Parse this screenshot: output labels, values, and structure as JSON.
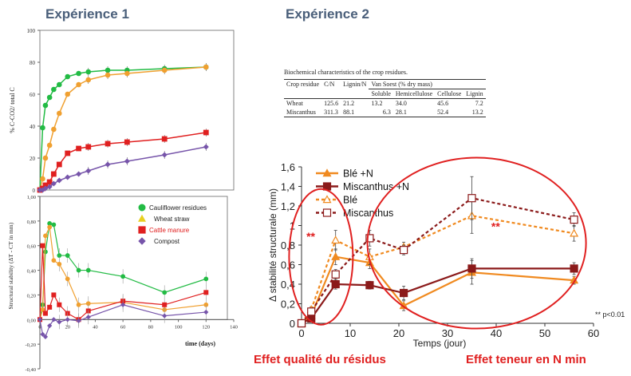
{
  "headings": {
    "exp1": "Expérience 1",
    "exp2": "Expérience 2"
  },
  "footer": {
    "left": "Effet qualité du résidus",
    "right": "Effet teneur en N min"
  },
  "table": {
    "caption": "Biochemical characteristics of the crop residues.",
    "headers": [
      "Crop residue",
      "C/N",
      "Lignin/N",
      "Van Soest (% dry mass)"
    ],
    "subheaders": [
      "Soluble",
      "Hemicellulose",
      "Cellulose",
      "Lignin"
    ],
    "rows": [
      [
        "Wheat",
        "125.6",
        "21.2",
        "13.2",
        "34.0",
        "45.6",
        "7.2"
      ],
      [
        "Miscanthus",
        "311.3",
        "88.1",
        "6.3",
        "28.1",
        "52.4",
        "13.2"
      ]
    ]
  },
  "chart_data": [
    {
      "type": "line",
      "title": "",
      "ylabel": "% C-CO2/ total C",
      "xlabel": "",
      "xlim": [
        0,
        140
      ],
      "ylim": [
        0,
        100
      ],
      "yticks": [
        0,
        20,
        40,
        60,
        80,
        100
      ],
      "series": [
        {
          "name": "Cauliflower residues",
          "color": "#22bb44",
          "marker": "circle",
          "x": [
            0,
            2,
            4,
            7,
            10,
            14,
            20,
            28,
            35,
            49,
            63,
            90,
            120
          ],
          "y": [
            0,
            39,
            53,
            58,
            63,
            66,
            71,
            73,
            74,
            75,
            75,
            76,
            77
          ]
        },
        {
          "name": "Wheat straw",
          "color": "#f0a030",
          "marker": "circle",
          "x": [
            0,
            2,
            4,
            7,
            10,
            14,
            20,
            28,
            35,
            49,
            63,
            90,
            120
          ],
          "y": [
            0,
            7,
            20,
            28,
            38,
            48,
            60,
            66,
            69,
            72,
            73,
            75,
            77
          ]
        },
        {
          "name": "Cattle manure",
          "color": "#e02020",
          "marker": "square",
          "x": [
            0,
            2,
            4,
            7,
            10,
            14,
            20,
            28,
            35,
            49,
            63,
            90,
            120
          ],
          "y": [
            0,
            1,
            3,
            5,
            10,
            16,
            23,
            26,
            27,
            29,
            30,
            32,
            36
          ]
        },
        {
          "name": "Compost",
          "color": "#7755aa",
          "marker": "diamond",
          "x": [
            0,
            2,
            4,
            7,
            10,
            14,
            20,
            28,
            35,
            49,
            63,
            90,
            120
          ],
          "y": [
            0,
            0,
            1,
            2,
            4,
            6,
            8,
            10,
            12,
            16,
            18,
            22,
            27
          ]
        }
      ]
    },
    {
      "type": "line",
      "title": "",
      "ylabel": "Structural stability (ΔT - CT in mm)",
      "xlabel": "time (days)",
      "xlim": [
        0,
        140
      ],
      "ylim": [
        -0.4,
        1.0
      ],
      "xticks": [
        0,
        20,
        40,
        60,
        80,
        100,
        120,
        140
      ],
      "yticks": [
        -0.4,
        -0.2,
        0,
        0.2,
        0.4,
        0.6,
        0.8,
        1.0
      ],
      "legend": {
        "position": "top-right"
      },
      "series": [
        {
          "name": "Cauliflower residues",
          "color": "#22bb44",
          "marker": "circle",
          "x": [
            0,
            2,
            4,
            7,
            10,
            14,
            20,
            28,
            35,
            60,
            90,
            120
          ],
          "y": [
            0,
            0.12,
            0.55,
            0.78,
            0.77,
            0.52,
            0.52,
            0.4,
            0.4,
            0.35,
            0.22,
            0.33
          ]
        },
        {
          "name": "Wheat straw",
          "color": "#f0a030",
          "marker": "circle",
          "x": [
            0,
            2,
            4,
            7,
            10,
            14,
            20,
            28,
            35,
            60,
            90,
            120
          ],
          "y": [
            0,
            0.08,
            0.68,
            0.75,
            0.48,
            0.45,
            0.33,
            0.12,
            0.13,
            0.14,
            0.08,
            0.12
          ]
        },
        {
          "name": "Cattle manure",
          "color": "#e02020",
          "marker": "square",
          "x": [
            0,
            2,
            4,
            7,
            10,
            14,
            20,
            28,
            35,
            60,
            90,
            120
          ],
          "y": [
            0,
            0.6,
            0.05,
            0.1,
            0.2,
            0.12,
            0.05,
            0.0,
            0.07,
            0.15,
            0.12,
            0.22
          ]
        },
        {
          "name": "Compost",
          "color": "#7755aa",
          "marker": "diamond",
          "x": [
            0,
            2,
            4,
            7,
            10,
            14,
            20,
            28,
            35,
            60,
            90,
            120
          ],
          "y": [
            0,
            -0.12,
            -0.14,
            -0.05,
            0.0,
            -0.02,
            0.0,
            -0.01,
            0.02,
            0.12,
            0.03,
            0.06
          ]
        }
      ]
    },
    {
      "type": "line",
      "title": "",
      "ylabel": "Δ stabilité structurale (mm)",
      "xlabel": "Temps (jour)",
      "xlim": [
        0,
        60
      ],
      "ylim": [
        0,
        1.6
      ],
      "xticks": [
        0,
        10,
        20,
        30,
        40,
        50,
        60
      ],
      "yticks": [
        0,
        0.2,
        0.4,
        0.6,
        0.8,
        1,
        1.2,
        1.4,
        1.6
      ],
      "annotations": [
        "**",
        "**",
        "** p<0.01"
      ],
      "series": [
        {
          "name": "Blé +N",
          "color": "#f08a20",
          "marker": "triangle",
          "filled": true,
          "dash": false,
          "x": [
            0,
            2,
            7,
            14,
            21,
            35,
            56
          ],
          "y": [
            0,
            0.08,
            0.68,
            0.62,
            0.18,
            0.52,
            0.44
          ],
          "err": [
            0.02,
            0.03,
            0.08,
            0.06,
            0.05,
            0.12,
            0.04
          ]
        },
        {
          "name": "Miscanthus +N",
          "color": "#8b1a1a",
          "marker": "square",
          "filled": true,
          "dash": false,
          "x": [
            0,
            2,
            7,
            14,
            21,
            35,
            56
          ],
          "y": [
            0,
            0.05,
            0.4,
            0.39,
            0.31,
            0.56,
            0.56
          ],
          "err": [
            0.02,
            0.03,
            0.05,
            0.04,
            0.07,
            0.1,
            0.06
          ]
        },
        {
          "name": "Blé",
          "color": "#f08a20",
          "marker": "triangle",
          "filled": false,
          "dash": true,
          "x": [
            0,
            2,
            7,
            14,
            21,
            35,
            56
          ],
          "y": [
            0,
            0.14,
            0.85,
            0.68,
            0.78,
            1.1,
            0.92
          ],
          "err": [
            0.02,
            0.03,
            0.1,
            0.08,
            0.05,
            0.18,
            0.08
          ]
        },
        {
          "name": "Miscanthus",
          "color": "#8b1a1a",
          "marker": "square",
          "filled": false,
          "dash": true,
          "x": [
            0,
            2,
            7,
            14,
            21,
            35,
            56
          ],
          "y": [
            0,
            0.12,
            0.5,
            0.87,
            0.75,
            1.28,
            1.06
          ],
          "err": [
            0.02,
            0.03,
            0.05,
            0.08,
            0.05,
            0.22,
            0.07
          ]
        }
      ]
    }
  ]
}
